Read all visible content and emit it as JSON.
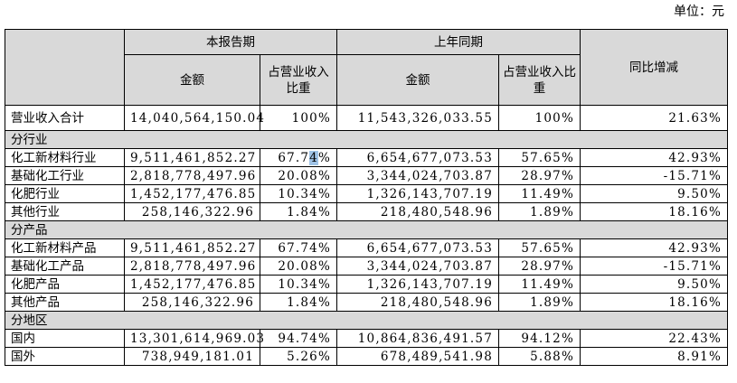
{
  "unit_label": "单位：元",
  "headers": {
    "current_period": "本报告期",
    "prior_period": "上年同期",
    "amount": "金额",
    "share": "占营业收入比重",
    "yoy": "同比增减"
  },
  "total_row": {
    "label": "营业收入合计",
    "cur_amount": "14,040,564,150.04",
    "cur_share": "100%",
    "prev_amount": "11,543,326,033.55",
    "prev_share": "100%",
    "yoy": "21.63%"
  },
  "sections": [
    {
      "title": "分行业",
      "rows": [
        {
          "label": "化工新材料行业",
          "cur_amount": "9,511,461,852.27",
          "cur_share": "67.74%",
          "prev_amount": "6,654,677,073.53",
          "prev_share": "57.65%",
          "yoy": "42.93%"
        },
        {
          "label": "基础化工行业",
          "cur_amount": "2,818,778,497.96",
          "cur_share": "20.08%",
          "prev_amount": "3,344,024,703.87",
          "prev_share": "28.97%",
          "yoy": "-15.71%"
        },
        {
          "label": "化肥行业",
          "cur_amount": "1,452,177,476.85",
          "cur_share": "10.34%",
          "prev_amount": "1,326,143,707.19",
          "prev_share": "11.49%",
          "yoy": "9.50%"
        },
        {
          "label": "其他行业",
          "cur_amount": "258,146,322.96",
          "cur_share": "1.84%",
          "prev_amount": "218,480,548.96",
          "prev_share": "1.89%",
          "yoy": "18.16%"
        }
      ]
    },
    {
      "title": "分产品",
      "rows": [
        {
          "label": "化工新材料产品",
          "cur_amount": "9,511,461,852.27",
          "cur_share": "67.74%",
          "prev_amount": "6,654,677,073.53",
          "prev_share": "57.65%",
          "yoy": "42.93%"
        },
        {
          "label": "基础化工产品",
          "cur_amount": "2,818,778,497.96",
          "cur_share": "20.08%",
          "prev_amount": "3,344,024,703.87",
          "prev_share": "28.97%",
          "yoy": "-15.71%"
        },
        {
          "label": "化肥产品",
          "cur_amount": "1,452,177,476.85",
          "cur_share": "10.34%",
          "prev_amount": "1,326,143,707.19",
          "prev_share": "11.49%",
          "yoy": "9.50%"
        },
        {
          "label": "其他产品",
          "cur_amount": "258,146,322.96",
          "cur_share": "1.84%",
          "prev_amount": "218,480,548.96",
          "prev_share": "1.89%",
          "yoy": "18.16%"
        }
      ]
    },
    {
      "title": "分地区",
      "rows": [
        {
          "label": "国内",
          "cur_amount": "13,301,614,969.03",
          "cur_share": "94.74%",
          "prev_amount": "10,864,836,491.57",
          "prev_share": "94.12%",
          "yoy": "22.43%"
        },
        {
          "label": "国外",
          "cur_amount": "738,949,181.01",
          "cur_share": "5.26%",
          "prev_amount": "678,489,541.98",
          "prev_share": "5.88%",
          "yoy": "8.91%"
        }
      ]
    }
  ]
}
